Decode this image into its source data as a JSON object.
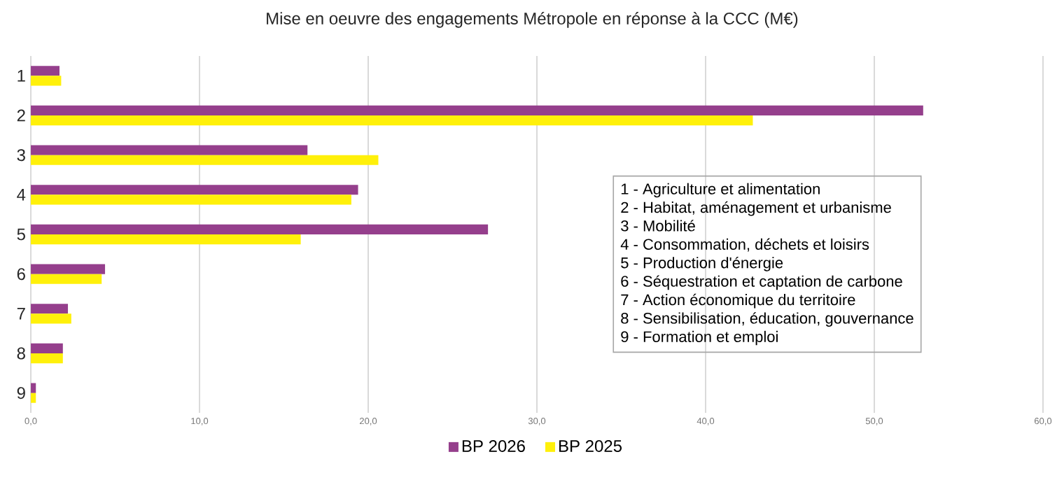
{
  "chart_data": {
    "type": "bar",
    "orientation": "horizontal",
    "title": "Mise en oeuvre des engagements Métropole en réponse à la CCC (M€)",
    "categories": [
      "1",
      "2",
      "3",
      "4",
      "5",
      "6",
      "7",
      "8",
      "9"
    ],
    "series": [
      {
        "name": "BP 2026",
        "color": "#953f8c",
        "values": [
          1.7,
          52.9,
          16.4,
          19.4,
          27.1,
          4.4,
          2.2,
          1.9,
          0.3
        ]
      },
      {
        "name": "BP 2025",
        "color": "#fff00a",
        "values": [
          1.8,
          42.8,
          20.6,
          19.0,
          16.0,
          4.2,
          2.4,
          1.9,
          0.3
        ]
      }
    ],
    "xlim": [
      0,
      60
    ],
    "xticks": [
      {
        "value": 0,
        "label": "0,0"
      },
      {
        "value": 10,
        "label": "10,0"
      },
      {
        "value": 20,
        "label": "20,0"
      },
      {
        "value": 30,
        "label": "30,0"
      },
      {
        "value": 40,
        "label": "40,0"
      },
      {
        "value": 50,
        "label": "50,0"
      },
      {
        "value": 60,
        "label": "60,0"
      }
    ],
    "grid": "x",
    "legend": "bottom",
    "annotations": [
      "1 - Agriculture et alimentation",
      "2 - Habitat, aménagement et urbanisme",
      "3 - Mobilité",
      "4 - Consommation, déchets et loisirs",
      "5 - Production d'énergie",
      "6 - Séquestration et captation de carbone",
      "7 - Action économique du territoire",
      "8 - Sensibilisation, éducation, gouvernance",
      "9 - Formation et emploi"
    ]
  }
}
